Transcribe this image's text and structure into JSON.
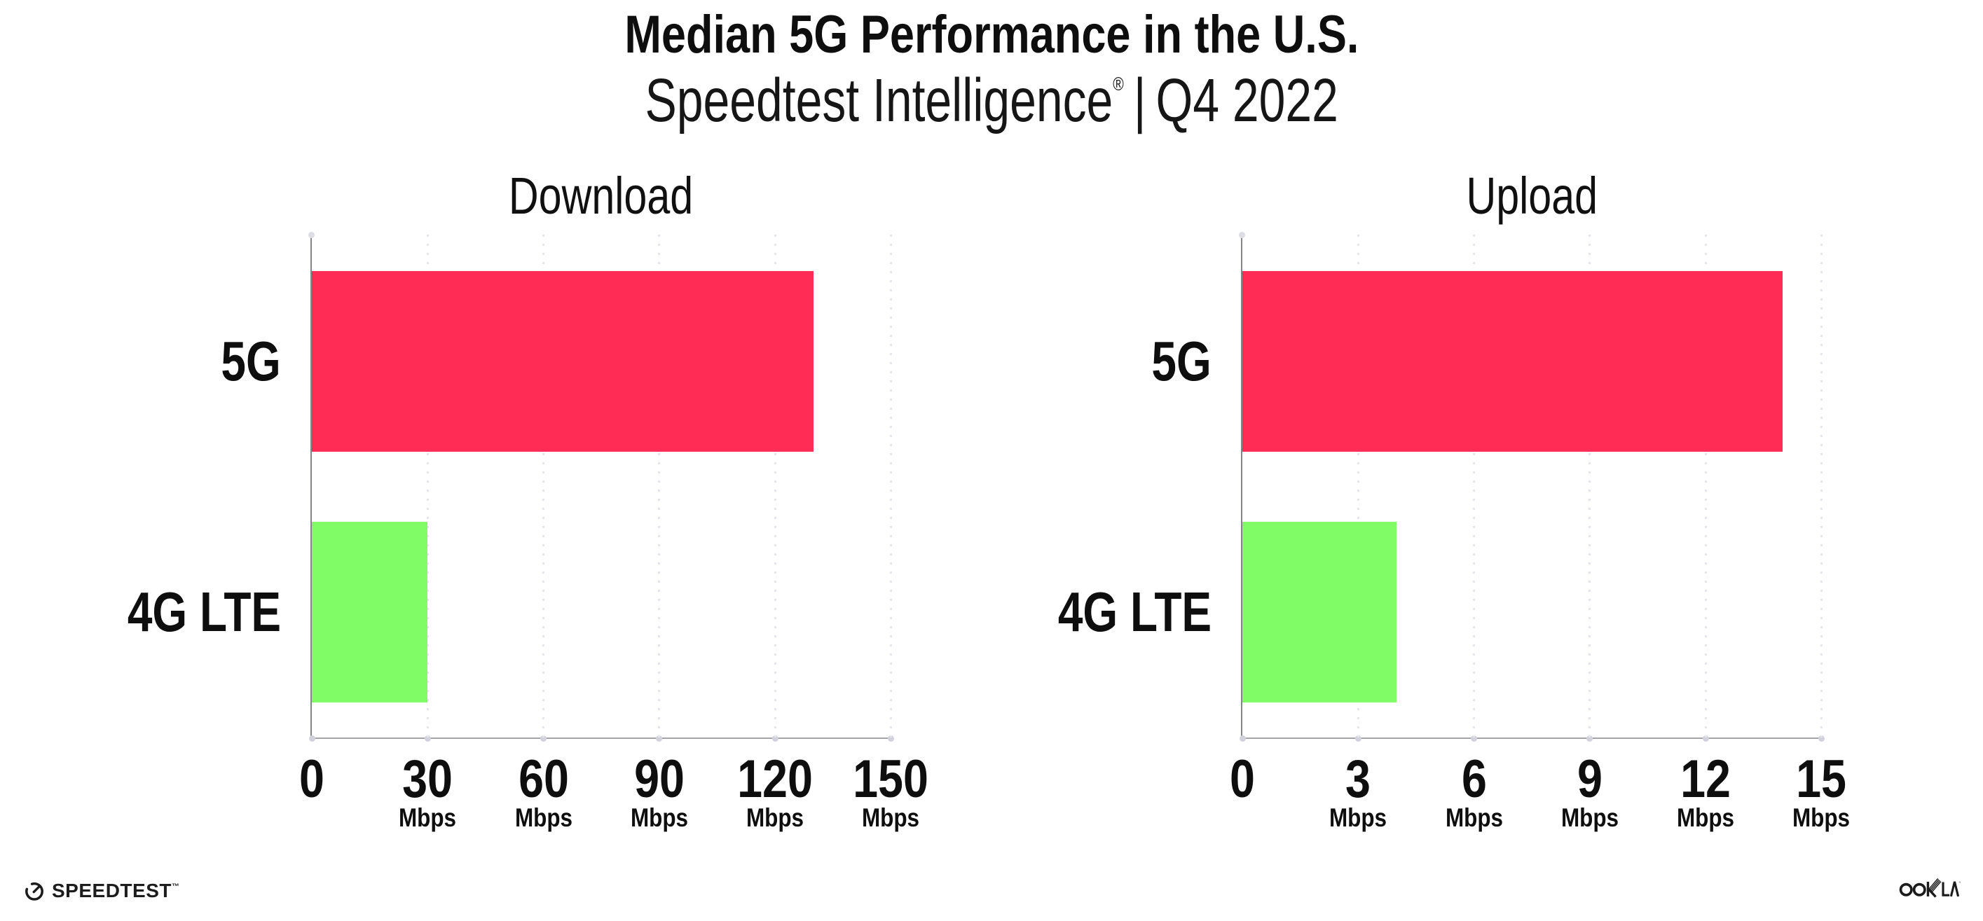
{
  "header": {
    "title": "Median 5G Performance in the U.S.",
    "subtitle_brand": "Speedtest Intelligence",
    "subtitle_reg": "®",
    "subtitle_sep": "|",
    "subtitle_period": "Q4 2022"
  },
  "chart_data": [
    {
      "type": "bar",
      "orientation": "horizontal",
      "title": "Download",
      "categories": [
        "5G",
        "4G LTE"
      ],
      "values": [
        130,
        30
      ],
      "unit": "Mbps",
      "ticks": [
        0,
        30,
        60,
        90,
        120,
        150
      ],
      "xlim": [
        0,
        150
      ],
      "xlabel": "Mbps",
      "ylabel": "",
      "grid": "dotted-vertical",
      "legend": "none",
      "bar_colors": [
        "#FF2D55",
        "#7FFC66"
      ]
    },
    {
      "type": "bar",
      "orientation": "horizontal",
      "title": "Upload",
      "categories": [
        "5G",
        "4G LTE"
      ],
      "values": [
        14,
        4
      ],
      "unit": "Mbps",
      "ticks": [
        0,
        3,
        6,
        9,
        12,
        15
      ],
      "xlim": [
        0,
        15
      ],
      "xlabel": "Mbps",
      "ylabel": "",
      "grid": "dotted-vertical",
      "legend": "none",
      "bar_colors": [
        "#FF2D55",
        "#7FFC66"
      ]
    }
  ],
  "footer": {
    "speedtest_label": "SPEEDTEST",
    "speedtest_tm": "™",
    "ookla_label": "OOKLA",
    "ookla_tm": "™"
  },
  "colors": {
    "bar_5g": "#FF2D55",
    "bar_4g_lte": "#7FFC66",
    "axis": "#9a9aa0",
    "gridline": "#e4e4ed",
    "text": "#0e0e0e",
    "background": "#ffffff"
  }
}
